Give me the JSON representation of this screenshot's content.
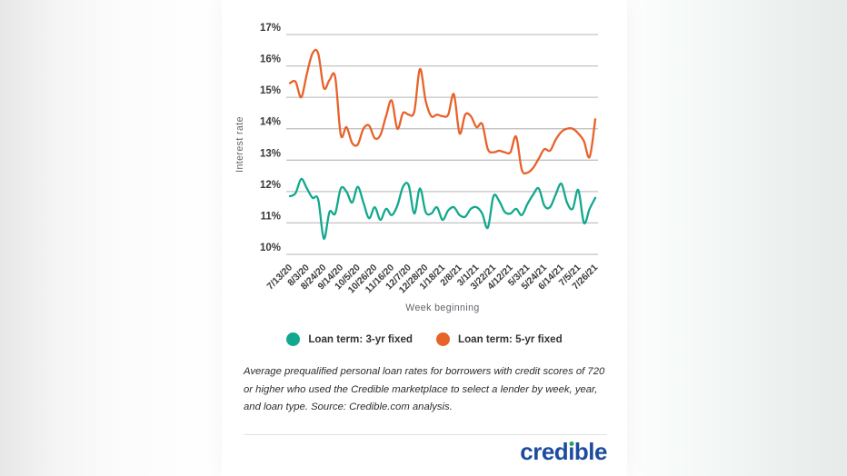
{
  "chart_data": {
    "type": "line",
    "xlabel": "Week beginning",
    "ylabel": "Interest rate",
    "ylim": [
      10,
      17
    ],
    "grid": true,
    "legend_position": "bottom",
    "y_ticks": [
      17,
      16,
      15,
      14,
      13,
      12,
      11,
      10
    ],
    "y_tick_labels": [
      "17%",
      "16%",
      "15%",
      "14%",
      "13%",
      "12%",
      "11%",
      "10%"
    ],
    "x_tick_every": 3,
    "x_tick_labels": [
      "7/13/20",
      "8/3/20",
      "8/24/20",
      "9/14/20",
      "10/5/20",
      "10/26/20",
      "11/16/20",
      "12/7/20",
      "12/28/20",
      "1/18/21",
      "2/8/21",
      "3/1/21",
      "3/22/21",
      "4/12/21",
      "5/3/21",
      "5/24/21",
      "6/14/21",
      "7/5/21",
      "7/26/21"
    ],
    "series": [
      {
        "name": "Loan term: 3-yr fixed",
        "color": "#12a88e",
        "values": [
          11.85,
          11.95,
          12.4,
          12.1,
          11.8,
          11.75,
          10.5,
          11.35,
          11.3,
          12.1,
          12.0,
          11.65,
          12.15,
          11.65,
          11.15,
          11.5,
          11.1,
          11.45,
          11.25,
          11.55,
          12.15,
          12.2,
          11.3,
          12.1,
          11.35,
          11.3,
          11.5,
          11.1,
          11.4,
          11.5,
          11.25,
          11.2,
          11.45,
          11.5,
          11.3,
          10.85,
          11.85,
          11.7,
          11.35,
          11.3,
          11.45,
          11.25,
          11.6,
          11.9,
          12.1,
          11.55,
          11.5,
          11.9,
          12.25,
          11.65,
          11.45,
          12.05,
          11.0,
          11.45,
          11.8
        ]
      },
      {
        "name": "Loan term: 5-yr fixed",
        "color": "#e8622a",
        "values": [
          15.45,
          15.5,
          15.0,
          15.75,
          16.4,
          16.4,
          15.3,
          15.55,
          15.65,
          13.8,
          14.05,
          13.55,
          13.5,
          14.0,
          14.1,
          13.7,
          13.8,
          14.4,
          14.9,
          14.0,
          14.5,
          14.45,
          14.55,
          15.9,
          14.9,
          14.4,
          14.45,
          14.4,
          14.45,
          15.1,
          13.85,
          14.45,
          14.4,
          14.05,
          14.15,
          13.35,
          13.25,
          13.3,
          13.25,
          13.25,
          13.75,
          12.7,
          12.6,
          12.75,
          13.05,
          13.35,
          13.3,
          13.65,
          13.9,
          14.0,
          14.0,
          13.85,
          13.6,
          13.1,
          14.3
        ]
      }
    ]
  },
  "footnote": {
    "text": "Average prequalified personal loan rates for borrowers with credit scores of 720 or higher who used the Credible marketplace to select a lender by week, year, and loan type. Source: Credible.com analysis."
  },
  "logo": {
    "full_text": "credible",
    "before_i": "cred",
    "dotless_i": "ı",
    "after_i": "ble"
  },
  "colors": {
    "teal": "#12a88e",
    "orange": "#e8622a",
    "gridline": "#c3c3c3",
    "tick_text": "#3a3a3a",
    "axis_text": "#5f6368",
    "logo_blue": "#1d4c9f",
    "logo_dot_green": "#2aa163",
    "card_bg": "#ffffff"
  }
}
